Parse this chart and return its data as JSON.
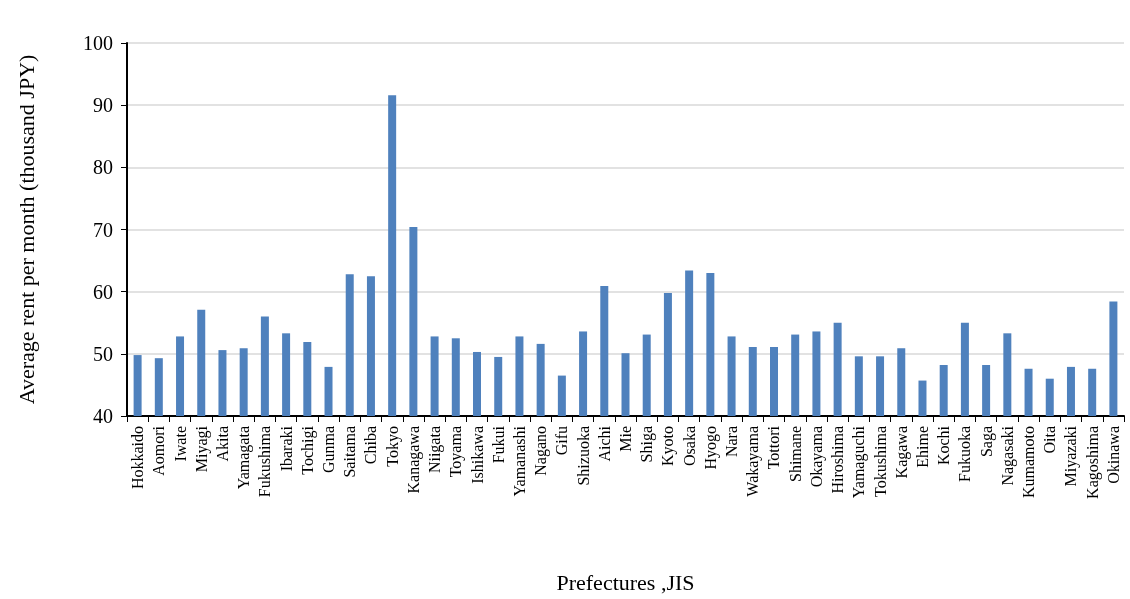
{
  "chart_data": {
    "type": "bar",
    "xlabel": "Prefectures ,JIS",
    "ylabel": "Average rent per month (thousand JPY)",
    "categories": [
      "Hokkaido",
      "Aomori",
      "Iwate",
      "Miyagi",
      "Akita",
      "Yamagata",
      "Fukushima",
      "Ibaraki",
      "Tochigi",
      "Gunma",
      "Saitama",
      "Chiba",
      "Tokyo",
      "Kanagawa",
      "Niigata",
      "Toyama",
      "Ishikawa",
      "Fukui",
      "Yamanashi",
      "Nagano",
      "Gifu",
      "Shizuoka",
      "Aichi",
      "Mie",
      "Shiga",
      "Kyoto",
      "Osaka",
      "Hyogo",
      "Nara",
      "Wakayama",
      "Tottori",
      "Shimane",
      "Okayama",
      "Hiroshima",
      "Yamaguchi",
      "Tokushima",
      "Kagawa",
      "Ehime",
      "Kochi",
      "Fukuoka",
      "Saga",
      "Nagasaki",
      "Kumamoto",
      "Oita",
      "Miyazaki",
      "Kagoshima",
      "Okinawa"
    ],
    "values": [
      49.8,
      49.3,
      52.8,
      57.1,
      50.6,
      50.9,
      56.0,
      53.3,
      51.9,
      47.9,
      62.8,
      62.5,
      91.6,
      70.4,
      52.8,
      52.5,
      50.3,
      49.5,
      52.8,
      51.6,
      46.5,
      53.6,
      60.9,
      50.1,
      53.1,
      59.8,
      63.4,
      63.0,
      52.8,
      51.1,
      51.1,
      53.1,
      53.6,
      55.0,
      49.6,
      49.6,
      50.9,
      45.7,
      48.2,
      55.0,
      48.2,
      53.3,
      47.6,
      46.0,
      47.9,
      47.6,
      58.4
    ],
    "color": "#4f81bd",
    "ylim": [
      40,
      100
    ],
    "yticks": [
      40,
      50,
      60,
      70,
      80,
      90,
      100
    ],
    "grid": "y"
  }
}
